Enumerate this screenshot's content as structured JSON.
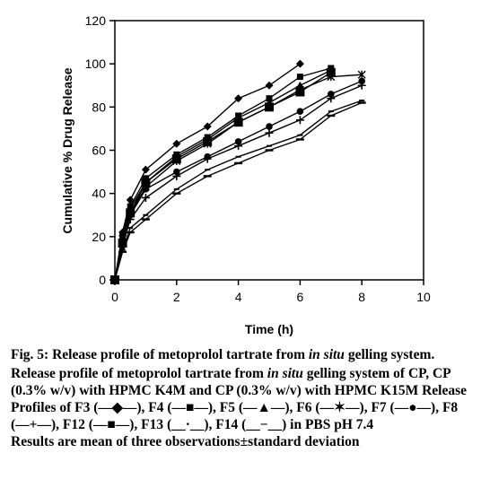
{
  "chart_data": {
    "type": "line",
    "xlabel": "Time (h)",
    "ylabel": "Cumulative % Drug Release",
    "xlim": [
      0,
      10
    ],
    "ylim": [
      0,
      120
    ],
    "xticks": [
      "0",
      "2",
      "4",
      "6",
      "8",
      "10"
    ],
    "yticks": [
      "0",
      "20",
      "40",
      "60",
      "80",
      "100",
      "120"
    ],
    "grid": false,
    "x": [
      0,
      0.25,
      0.5,
      1,
      2,
      3,
      4,
      5,
      6,
      7,
      8
    ],
    "series": [
      {
        "name": "F3",
        "marker": "diamond",
        "values": [
          0,
          22,
          37,
          51,
          63,
          71,
          84,
          90,
          100,
          null,
          null
        ]
      },
      {
        "name": "F4",
        "marker": "square",
        "values": [
          0,
          21,
          34,
          47,
          58,
          66,
          76,
          84,
          94,
          98,
          null
        ]
      },
      {
        "name": "F5",
        "marker": "triangle",
        "values": [
          0,
          20,
          33,
          45,
          57,
          65,
          75,
          82,
          90,
          97,
          null
        ]
      },
      {
        "name": "F6",
        "marker": "asterisk",
        "values": [
          0,
          19,
          31,
          43,
          55,
          63,
          73,
          80,
          88,
          94,
          95
        ]
      },
      {
        "name": "F7",
        "marker": "circle",
        "values": [
          0,
          18,
          30,
          42,
          50,
          57,
          64,
          71,
          78,
          86,
          92
        ]
      },
      {
        "name": "F8",
        "marker": "plus",
        "values": [
          0,
          16,
          28,
          38,
          48,
          56,
          62,
          68,
          74,
          84,
          90
        ]
      },
      {
        "name": "F12",
        "marker": "bigsquare",
        "values": [
          0,
          17,
          31,
          45,
          56,
          64,
          73,
          80,
          87,
          96,
          null
        ]
      },
      {
        "name": "F13",
        "marker": "dash",
        "values": [
          0,
          14,
          24,
          30,
          42,
          51,
          57,
          62,
          67,
          78,
          83
        ]
      },
      {
        "name": "F14",
        "marker": "bar",
        "values": [
          0,
          13,
          22,
          28,
          40,
          48,
          54,
          60,
          65,
          76,
          82
        ]
      }
    ]
  },
  "caption": {
    "fig_label": "Fig. 5:",
    "title_pre": "Release profile of metoprolol tartrate from",
    "title_italic": "in situ",
    "title_post": "gelling system.",
    "desc_pre": "Release profile of metoprolol tartrate from",
    "desc_italic": "in situ",
    "desc_post": "gelling system of CP, CP (0.3% w/v) with HPMC K4M and CP (0.3% w/v) with HPMC K15M Release Profiles of F3 (—◆—), F4 (—■—), F5 (—▲—), F6 (—✶—), F7 (—●—), F8 (—+—), F12 (—■—), F13 (__·__), F14 (__−__) in PBS pH 7.4",
    "note": "Results are mean of three observations±standard deviation"
  }
}
